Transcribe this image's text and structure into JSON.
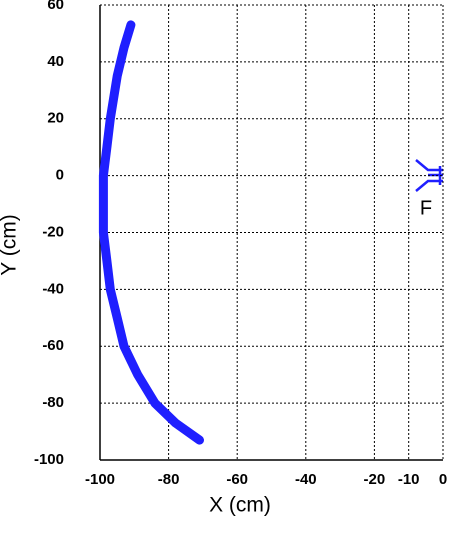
{
  "chart_data": {
    "type": "line",
    "xlabel": "X (cm)",
    "ylabel": "Y (cm)",
    "annotation": "F",
    "x": [
      -91,
      -93,
      -95,
      -97,
      -98,
      -99,
      -99,
      -99,
      -98,
      -97,
      -95,
      -93,
      -89,
      -84,
      -78,
      -71
    ],
    "values": [
      53,
      45,
      35,
      20,
      10,
      0,
      -10,
      -20,
      -30,
      -40,
      -50,
      -60,
      -70,
      -80,
      -87,
      -93
    ],
    "color": "#1f1fff",
    "xlim": [
      -100,
      0
    ],
    "xticks": [
      -100,
      -80,
      -60,
      -40,
      -20,
      -10,
      0
    ],
    "ylim": [
      -100,
      60
    ],
    "yticks": [
      -100,
      -80,
      -60,
      -40,
      -20,
      0,
      20,
      40,
      60
    ],
    "grid": true
  }
}
